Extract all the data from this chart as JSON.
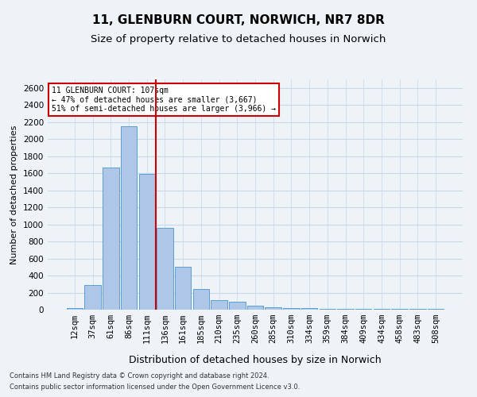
{
  "title": "11, GLENBURN COURT, NORWICH, NR7 8DR",
  "subtitle": "Size of property relative to detached houses in Norwich",
  "xlabel": "Distribution of detached houses by size in Norwich",
  "ylabel": "Number of detached properties",
  "categories": [
    "12sqm",
    "37sqm",
    "61sqm",
    "86sqm",
    "111sqm",
    "136sqm",
    "161sqm",
    "185sqm",
    "210sqm",
    "235sqm",
    "260sqm",
    "285sqm",
    "310sqm",
    "334sqm",
    "359sqm",
    "384sqm",
    "409sqm",
    "434sqm",
    "458sqm",
    "483sqm",
    "508sqm"
  ],
  "values": [
    15,
    290,
    1670,
    2150,
    1590,
    960,
    500,
    240,
    115,
    95,
    45,
    30,
    20,
    15,
    12,
    12,
    8,
    10,
    5,
    5,
    10
  ],
  "bar_color": "#aec6e8",
  "bar_edge_color": "#5a9fd4",
  "grid_color": "#c8d8e8",
  "background_color": "#eef3f8",
  "vline_position": 4.5,
  "vline_color": "#cc0000",
  "annotation_text": "11 GLENBURN COURT: 107sqm\n← 47% of detached houses are smaller (3,667)\n51% of semi-detached houses are larger (3,966) →",
  "annotation_box_color": "#ffffff",
  "annotation_box_edge": "#cc0000",
  "footer_line1": "Contains HM Land Registry data © Crown copyright and database right 2024.",
  "footer_line2": "Contains public sector information licensed under the Open Government Licence v3.0.",
  "ylim": [
    0,
    2700
  ],
  "title_fontsize": 11,
  "subtitle_fontsize": 9.5,
  "ylabel_fontsize": 8,
  "xlabel_fontsize": 9,
  "tick_fontsize": 7.5,
  "annotation_fontsize": 7,
  "footer_fontsize": 6
}
